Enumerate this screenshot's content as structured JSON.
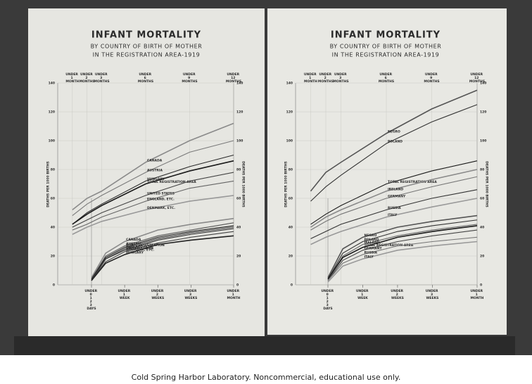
{
  "chart_data": [
    {
      "type": "line",
      "title": "INFANT MORTALITY",
      "subtitle": [
        "BY COUNTRY OF BIRTH OF MOTHER",
        "IN THE REGISTRATION AREA-1919"
      ],
      "ylabel": "DEATHS PER 1000 BIRTHS",
      "xlim": [
        0,
        12
      ],
      "xticks": [
        {
          "value": 1,
          "label": "UNDER 1 MONTH"
        },
        {
          "value": 2,
          "label": "UNDER 2 MONTHS"
        },
        {
          "value": 3,
          "label": "UNDER 3 MONTHS"
        },
        {
          "value": 6,
          "label": "UNDER 6 MONTHS"
        },
        {
          "value": 9,
          "label": "UNDER 9 MONTHS"
        },
        {
          "value": 12,
          "label": "UNDER 12 MONTHS"
        }
      ],
      "ylim": [
        0,
        140
      ],
      "yticks": [
        0,
        20,
        40,
        60,
        80,
        100,
        120,
        140
      ],
      "grid": true,
      "x": [
        1,
        2,
        3,
        6,
        9,
        12
      ],
      "series": [
        {
          "name": "CANADA",
          "color": "#8a8a8a",
          "values": [
            52,
            60,
            65,
            85,
            100,
            112
          ]
        },
        {
          "name": "AUSTRIA",
          "color": "#7a7a7a",
          "values": [
            48,
            56,
            62,
            78,
            92,
            100
          ]
        },
        {
          "name": "HUNGARY",
          "color": "#2a2a2a",
          "values": [
            42,
            50,
            56,
            72,
            82,
            90
          ]
        },
        {
          "name": "TOTAL REGISTRATION AREA",
          "color": "#1a1a1a",
          "values": [
            42,
            49,
            55,
            70,
            79,
            86
          ]
        },
        {
          "name": "UNITED STATES",
          "color": "#444444",
          "values": [
            40,
            45,
            50,
            62,
            72,
            78
          ]
        },
        {
          "name": "ENGLAND, ETC.",
          "color": "#666666",
          "values": [
            38,
            42,
            47,
            58,
            67,
            72
          ]
        },
        {
          "name": "DENMARK, ETC.",
          "color": "#999999",
          "values": [
            35,
            40,
            44,
            52,
            58,
            62
          ]
        }
      ],
      "inset": {
        "type": "line",
        "xlim": [
          0,
          30
        ],
        "xticks": [
          {
            "value": 0,
            "label": "UNDER 0 1 2 3 DAYS"
          },
          {
            "value": 7,
            "label": "UNDER 1 WEEK"
          },
          {
            "value": 14,
            "label": "UNDER 2 WEEKS"
          },
          {
            "value": 21,
            "label": "UNDER 3 WEEKS"
          },
          {
            "value": 30,
            "label": "UNDER 1 MONTH"
          }
        ],
        "x": [
          0,
          3,
          7,
          14,
          21,
          30
        ],
        "series": [
          {
            "name": "CANADA",
            "color": "#8a8a8a",
            "values": [
              5,
              22,
              30,
              38,
              42,
              46
            ]
          },
          {
            "name": "AUSTRIA",
            "color": "#555555",
            "values": [
              4,
              20,
              27,
              34,
              38,
              43
            ]
          },
          {
            "name": "TOTAL REGISTRATION",
            "color": "#1a1a1a",
            "values": [
              4,
              19,
              26,
              33,
              37,
              41
            ]
          },
          {
            "name": "ENGLAND, ETC.",
            "color": "#666666",
            "values": [
              3,
              18,
              25,
              32,
              36,
              40
            ]
          },
          {
            "name": "UNITED STATES",
            "color": "#333333",
            "values": [
              3,
              18,
              24,
              31,
              35,
              39
            ]
          },
          {
            "name": "DENMARK, ETC.",
            "color": "#444444",
            "values": [
              3,
              16,
              23,
              29,
              33,
              37
            ]
          },
          {
            "name": "HUNGARY",
            "color": "#222222",
            "values": [
              3,
              15,
              21,
              28,
              31,
              34
            ]
          }
        ]
      }
    },
    {
      "type": "line",
      "title": "INFANT MORTALITY",
      "subtitle": [
        "BY COUNTRY OF BIRTH OF MOTHER",
        "IN THE REGISTRATION AREA-1919"
      ],
      "ylabel": "DEATHS PER 1000 BIRTHS",
      "xlim": [
        0,
        12
      ],
      "xticks": [
        {
          "value": 1,
          "label": "UNDER 1 MONTH"
        },
        {
          "value": 2,
          "label": "UNDER 2 MONTHS"
        },
        {
          "value": 3,
          "label": "UNDER 3 MONTHS"
        },
        {
          "value": 6,
          "label": "UNDER 6 MONTHS"
        },
        {
          "value": 9,
          "label": "UNDER 9 MONTHS"
        },
        {
          "value": 12,
          "label": "UNDER 12 MONTHS"
        }
      ],
      "ylim": [
        0,
        140
      ],
      "yticks": [
        0,
        20,
        40,
        60,
        80,
        100,
        120,
        140
      ],
      "grid": true,
      "x": [
        1,
        2,
        3,
        6,
        9,
        12
      ],
      "series": [
        {
          "name": "NEGRO",
          "color": "#555555",
          "values": [
            65,
            78,
            85,
            105,
            122,
            135
          ]
        },
        {
          "name": "POLAND",
          "color": "#333333",
          "values": [
            58,
            68,
            76,
            98,
            113,
            125
          ]
        },
        {
          "name": "TOTAL REGISTRATION AREA",
          "color": "#1a1a1a",
          "values": [
            42,
            49,
            55,
            70,
            79,
            86
          ]
        },
        {
          "name": "IRELAND",
          "color": "#8a8a8a",
          "values": [
            40,
            47,
            52,
            65,
            73,
            80
          ]
        },
        {
          "name": "GERMANY",
          "color": "#777777",
          "values": [
            38,
            44,
            49,
            60,
            68,
            75
          ]
        },
        {
          "name": "RUSSIA",
          "color": "#333333",
          "values": [
            32,
            37,
            42,
            52,
            60,
            66
          ]
        },
        {
          "name": "ITALY",
          "color": "#999999",
          "values": [
            28,
            33,
            37,
            47,
            54,
            60
          ]
        }
      ],
      "inset": {
        "type": "line",
        "xlim": [
          0,
          30
        ],
        "xticks": [
          {
            "value": 0,
            "label": "UNDER 0 1 2 3 DAYS"
          },
          {
            "value": 7,
            "label": "UNDER 1 WEEK"
          },
          {
            "value": 14,
            "label": "UNDER 2 WEEKS"
          },
          {
            "value": 21,
            "label": "UNDER 3 WEEKS"
          },
          {
            "value": 30,
            "label": "UNDER 1 MONTH"
          }
        ],
        "x": [
          0,
          3,
          7,
          14,
          21,
          30
        ],
        "series": [
          {
            "name": "NEGRO",
            "color": "#555555",
            "values": [
              5,
              25,
              33,
              40,
              44,
              48
            ]
          },
          {
            "name": "POLAND",
            "color": "#333333",
            "values": [
              4,
              22,
              30,
              37,
              41,
              45
            ]
          },
          {
            "name": "IRELAND",
            "color": "#666666",
            "values": [
              4,
              20,
              28,
              34,
              38,
              42
            ]
          },
          {
            "name": "TOTAL REGISTRATION AREA",
            "color": "#1a1a1a",
            "values": [
              4,
              19,
              26,
              33,
              37,
              41
            ]
          },
          {
            "name": "GERMANY",
            "color": "#444444",
            "values": [
              3,
              17,
              24,
              30,
              34,
              38
            ]
          },
          {
            "name": "RUSSIA",
            "color": "#777777",
            "values": [
              3,
              15,
              21,
              27,
              30,
              33
            ]
          },
          {
            "name": "ITALY",
            "color": "#999999",
            "values": [
              2,
              13,
              18,
              24,
              27,
              30
            ]
          }
        ]
      }
    }
  ],
  "footer": "Cold Spring Harbor Laboratory. Noncommercial, educational use only."
}
